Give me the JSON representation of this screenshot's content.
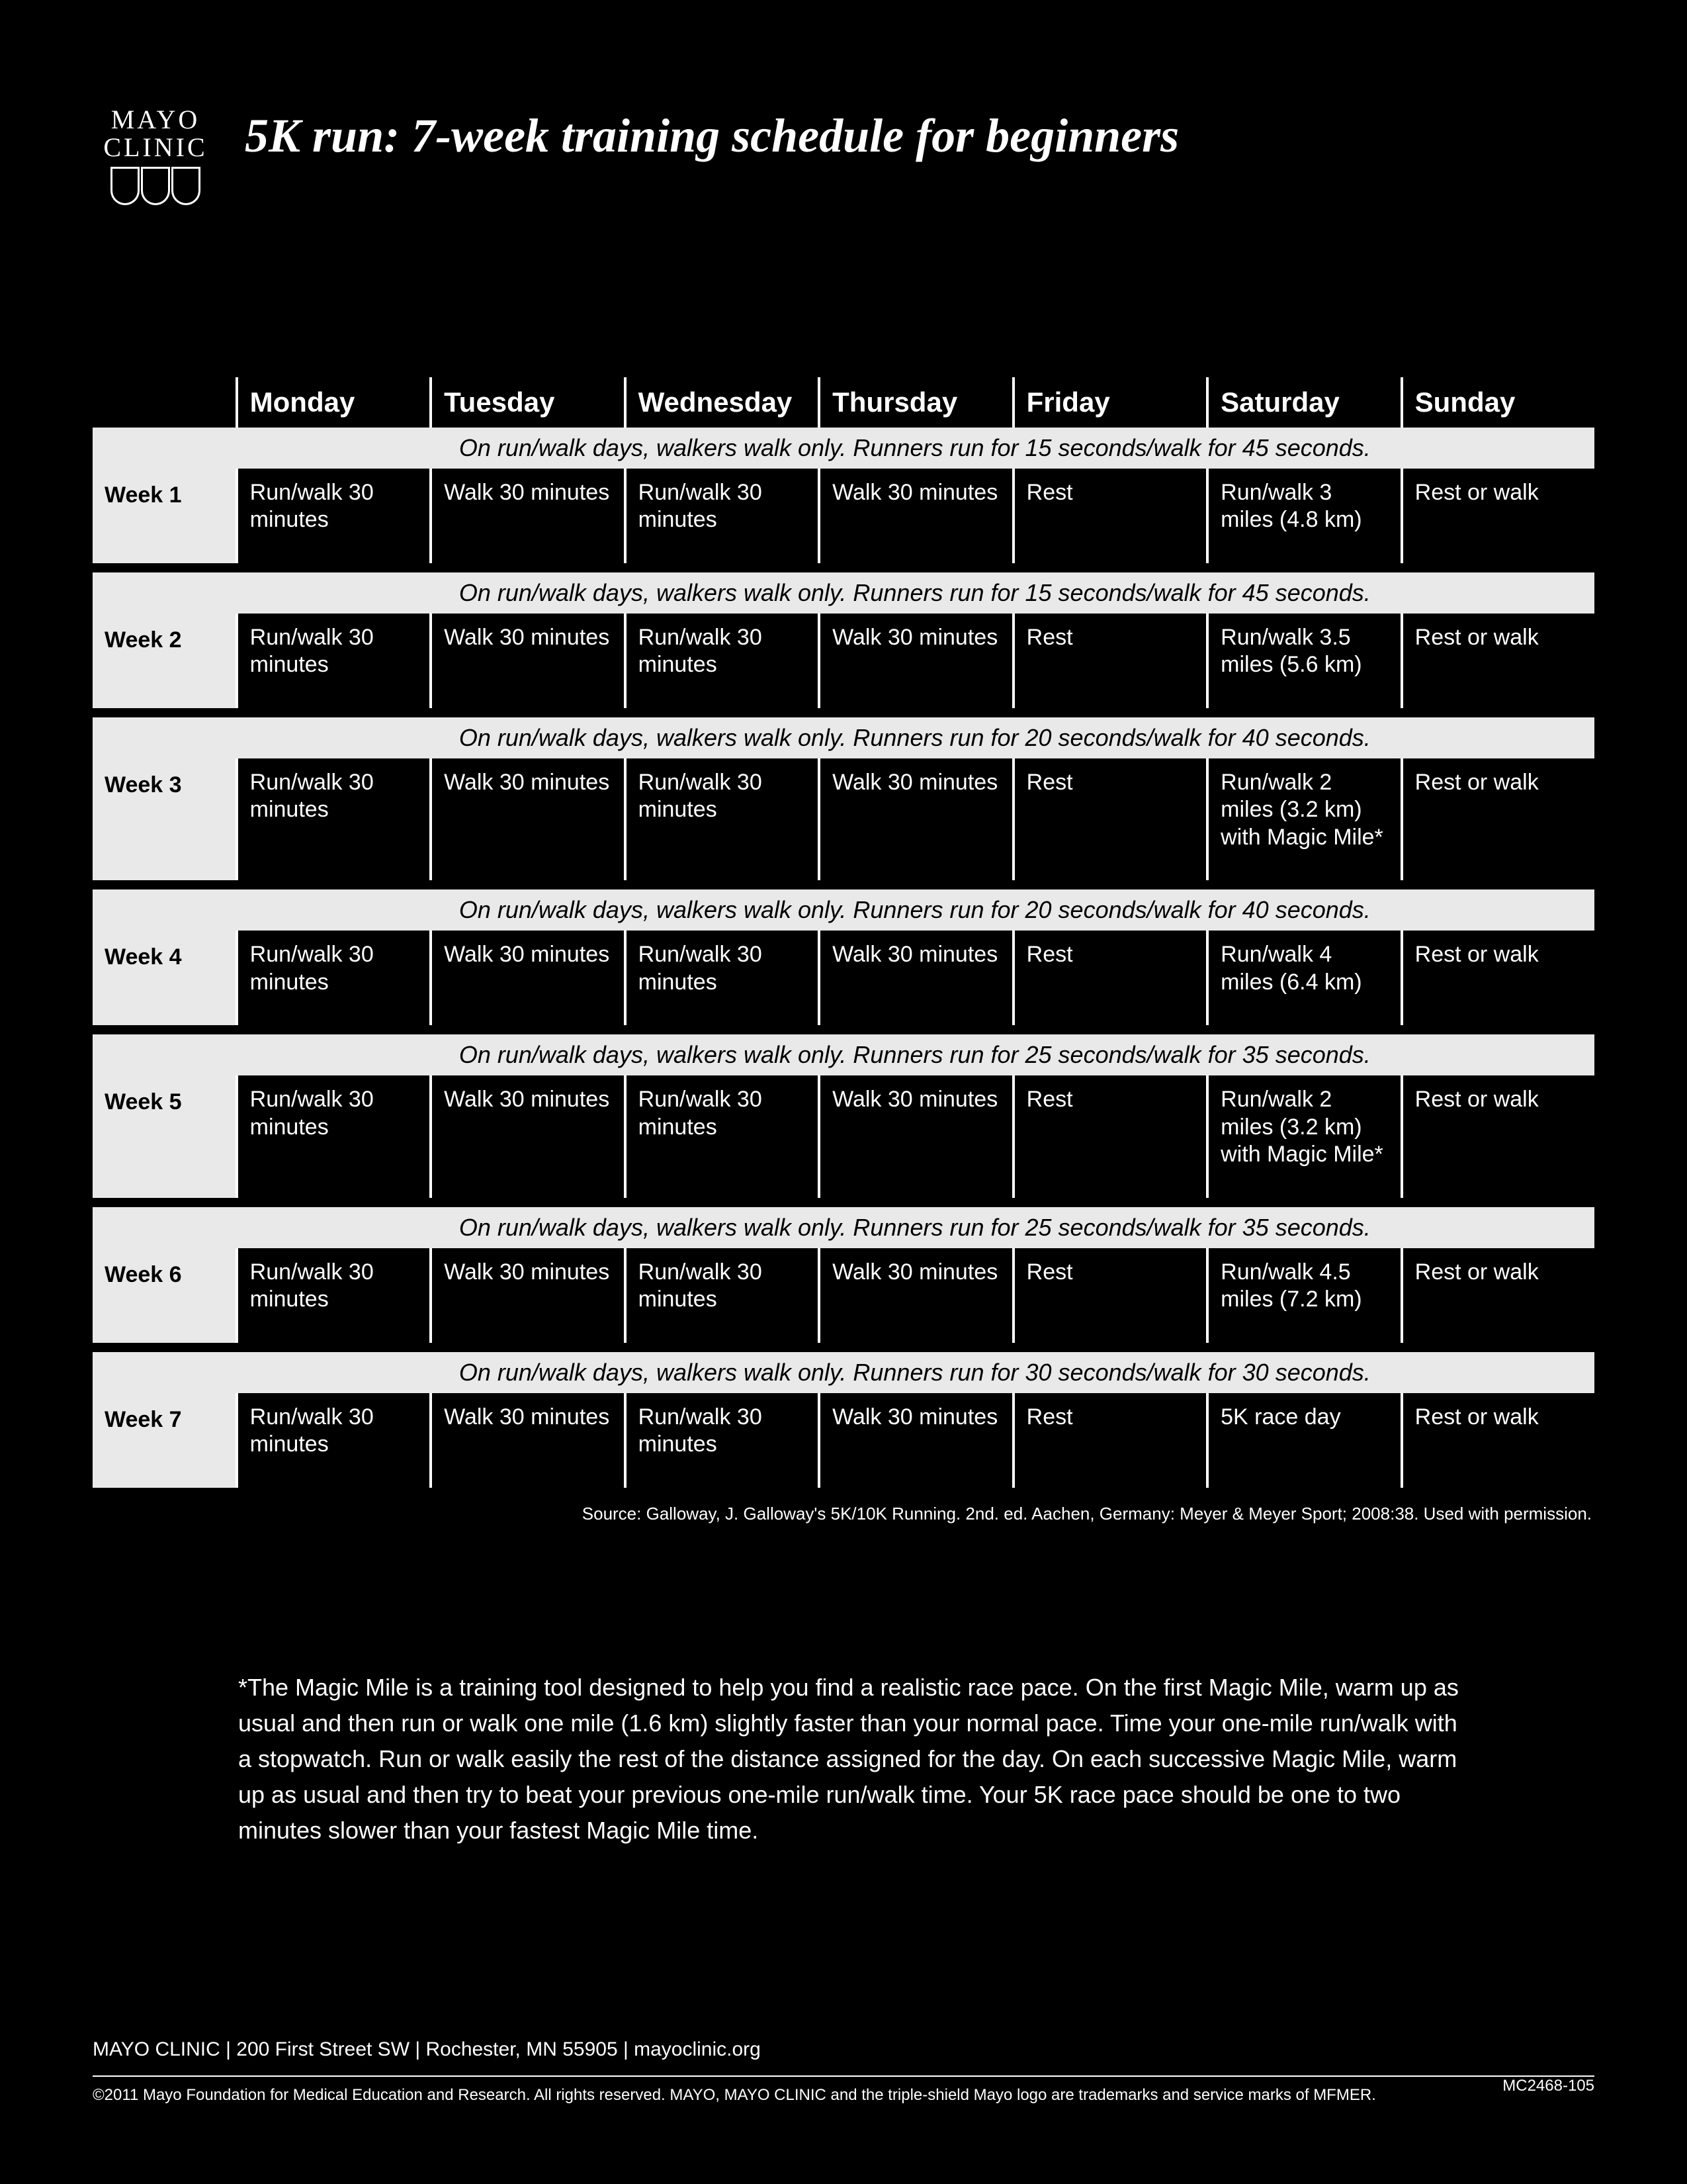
{
  "logo": {
    "line1": "MAYO",
    "line2": "CLINIC"
  },
  "title": "5K run: 7-week training schedule for beginners",
  "days": [
    "Monday",
    "Tuesday",
    "Wednesday",
    "Thursday",
    "Friday",
    "Saturday",
    "Sunday"
  ],
  "weeks": [
    {
      "label": "Week 1",
      "note": "On run/walk days, walkers walk only. Runners run for 15 seconds/walk for 45 seconds.",
      "cells": [
        "Run/walk 30 minutes",
        "Walk 30 minutes",
        "Run/walk 30 minutes",
        "Walk 30 minutes",
        "Rest",
        "Run/walk 3 miles (4.8 km)",
        "Rest or walk"
      ]
    },
    {
      "label": "Week 2",
      "note": "On run/walk days, walkers walk only. Runners run for 15 seconds/walk for 45 seconds.",
      "cells": [
        "Run/walk 30 minutes",
        "Walk 30 minutes",
        "Run/walk 30 minutes",
        "Walk 30 minutes",
        "Rest",
        "Run/walk 3.5 miles (5.6 km)",
        "Rest or walk"
      ]
    },
    {
      "label": "Week 3",
      "note": "On run/walk days, walkers walk only. Runners run for 20 seconds/walk for 40 seconds.",
      "cells": [
        "Run/walk 30 minutes",
        "Walk 30 minutes",
        "Run/walk 30 minutes",
        "Walk 30 minutes",
        "Rest",
        "Run/walk 2 miles (3.2 km) with Magic Mile*",
        "Rest or walk"
      ]
    },
    {
      "label": "Week 4",
      "note": "On run/walk days, walkers walk only. Runners run for 20 seconds/walk for 40 seconds.",
      "cells": [
        "Run/walk 30 minutes",
        "Walk 30 minutes",
        "Run/walk 30 minutes",
        "Walk 30 minutes",
        "Rest",
        "Run/walk 4 miles (6.4 km)",
        "Rest or walk"
      ]
    },
    {
      "label": "Week 5",
      "note": "On run/walk days, walkers walk only. Runners run for 25 seconds/walk for 35 seconds.",
      "cells": [
        "Run/walk 30 minutes",
        "Walk 30 minutes",
        "Run/walk 30 minutes",
        "Walk 30 minutes",
        "Rest",
        "Run/walk 2 miles (3.2 km) with Magic Mile*",
        "Rest or walk"
      ]
    },
    {
      "label": "Week 6",
      "note": "On run/walk days, walkers walk only. Runners run for 25 seconds/walk for 35 seconds.",
      "cells": [
        "Run/walk 30 minutes",
        "Walk 30 minutes",
        "Run/walk 30 minutes",
        "Walk 30 minutes",
        "Rest",
        "Run/walk 4.5 miles (7.2 km)",
        "Rest or walk"
      ]
    },
    {
      "label": "Week 7",
      "note": "On run/walk days, walkers walk only. Runners run for 30 seconds/walk for 30 seconds.",
      "cells": [
        "Run/walk 30 minutes",
        "Walk 30 minutes",
        "Run/walk 30 minutes",
        "Walk 30 minutes",
        "Rest",
        "5K race day",
        "Rest or walk"
      ]
    }
  ],
  "source": "Source: Galloway, J. Galloway's 5K/10K Running. 2nd. ed. Aachen, Germany: Meyer & Meyer Sport; 2008:38. Used with permission.",
  "footnote": "*The Magic Mile is a training tool designed to help you find a realistic race pace. On the first Magic Mile, warm up as usual and then run or walk one mile (1.6 km) slightly faster than your normal pace. Time your one-mile run/walk with a stopwatch. Run or walk easily the rest of the distance assigned for the day. On each successive Magic Mile, warm up as usual and then try to beat your previous one-mile run/walk time. Your 5K race pace should be one to two minutes slower than your fastest Magic Mile time.",
  "footer": {
    "address": "MAYO CLINIC  |  200 First Street SW  |  Rochester, MN 55905  |  mayoclinic.org",
    "legal": "©2011 Mayo Foundation for Medical Education and Research. All rights reserved. MAYO, MAYO CLINIC and the triple-shield Mayo logo are trademarks and service marks of MFMER.",
    "doc_id": "MC2468-105"
  },
  "colors": {
    "page_bg": "#000000",
    "text": "#ffffff",
    "band_bg": "#e9e9e9",
    "band_text": "#000000",
    "rule": "#ffffff"
  }
}
